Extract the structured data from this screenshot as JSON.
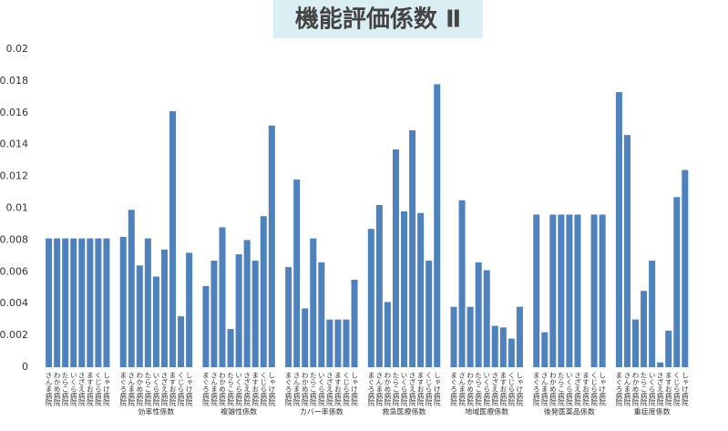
{
  "chart_data": {
    "type": "grouped-bar",
    "title": "機能評価係数 Ⅱ",
    "color": "#4f81bd",
    "ylim": [
      0,
      0.02
    ],
    "yticks": [
      0,
      0.002,
      0.004,
      0.006,
      0.008,
      0.01,
      0.012,
      0.014,
      0.016,
      0.018,
      0.02
    ],
    "groups": [
      {
        "label": null,
        "categories": [
          "さんま病院",
          "わかめ病院",
          "たらこ病院",
          "いくら病院",
          "さざえ病院",
          "ますお病院",
          "くじら病院",
          "しゃけ病院"
        ],
        "values": [
          0.0081,
          0.0081,
          0.0081,
          0.0081,
          0.0081,
          0.0081,
          0.0081,
          0.0081
        ]
      },
      {
        "label": "効率性係数",
        "categories": [
          "まぐろ病院",
          "さんま病院",
          "わかめ病院",
          "たらこ病院",
          "いくら病院",
          "さざえ病院",
          "ますお病院",
          "くじら病院",
          "しゃけ病院"
        ],
        "values": [
          0.0082,
          0.0099,
          0.0064,
          0.0081,
          0.0057,
          0.0074,
          0.0161,
          0.0032,
          0.0072
        ]
      },
      {
        "label": "複雑性係数",
        "categories": [
          "まぐろ病院",
          "さんま病院",
          "わかめ病院",
          "たらこ病院",
          "いくら病院",
          "さざえ病院",
          "ますお病院",
          "くじら病院",
          "しゃけ病院"
        ],
        "values": [
          0.0051,
          0.0067,
          0.0088,
          0.0024,
          0.0071,
          0.008,
          0.0067,
          0.0095,
          0.0152
        ]
      },
      {
        "label": "カバー率係数",
        "categories": [
          "まぐろ病院",
          "さんま病院",
          "わかめ病院",
          "たらこ病院",
          "いくら病院",
          "さざえ病院",
          "ますお病院",
          "くじら病院",
          "しゃけ病院"
        ],
        "values": [
          0.0063,
          0.0118,
          0.0037,
          0.0081,
          0.0066,
          0.003,
          0.003,
          0.003,
          0.0055
        ]
      },
      {
        "label": "救急医療係数",
        "categories": [
          "まぐろ病院",
          "さんま病院",
          "わかめ病院",
          "たらこ病院",
          "いくら病院",
          "さざえ病院",
          "ますお病院",
          "くじら病院",
          "しゃけ病院"
        ],
        "values": [
          0.0087,
          0.0102,
          0.0041,
          0.0137,
          0.0098,
          0.0149,
          0.0097,
          0.0067,
          0.0178
        ]
      },
      {
        "label": "地域医療係数",
        "categories": [
          "まぐろ病院",
          "さんま病院",
          "わかめ病院",
          "たらこ病院",
          "いくら病院",
          "さざえ病院",
          "ますお病院",
          "くじら病院",
          "しゃけ病院"
        ],
        "values": [
          0.0038,
          0.0105,
          0.0038,
          0.0066,
          0.0061,
          0.0026,
          0.0025,
          0.0018,
          0.0038
        ]
      },
      {
        "label": "後発医薬品係数",
        "categories": [
          "まぐろ病院",
          "さんま病院",
          "わかめ病院",
          "たらこ病院",
          "いくら病院",
          "さざえ病院",
          "ますお病院",
          "くじら病院",
          "しゃけ病院"
        ],
        "values": [
          0.0096,
          0.0022,
          0.0096,
          0.0096,
          0.0096,
          0.0096,
          null,
          0.0096,
          0.0096
        ]
      },
      {
        "label": "重症度係数",
        "categories": [
          "まぐろ病院",
          "さんま病院",
          "わかめ病院",
          "たらこ病院",
          "いくら病院",
          "さざえ病院",
          "ますお病院",
          "くじら病院",
          "しゃけ病院"
        ],
        "values": [
          0.0173,
          0.0146,
          0.003,
          0.0048,
          0.0067,
          0.0003,
          0.0023,
          0.0107,
          0.0124
        ]
      }
    ]
  }
}
